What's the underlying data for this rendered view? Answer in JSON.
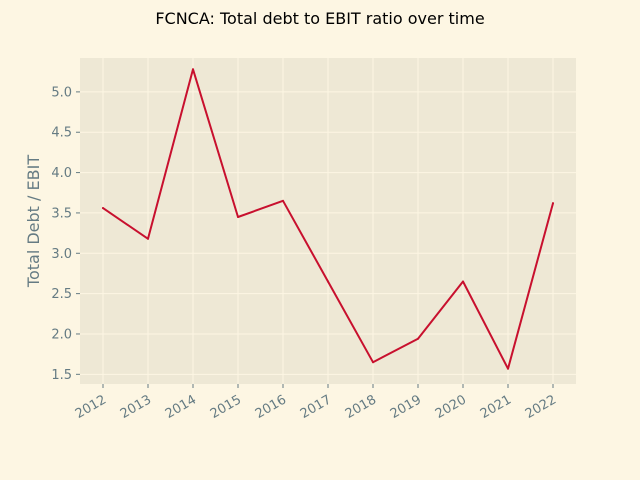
{
  "chart_data": {
    "type": "line",
    "title": "FCNCA: Total debt to EBIT ratio over time",
    "xlabel": "",
    "ylabel": "Total Debt / EBIT",
    "x": [
      "2012",
      "2013",
      "2014",
      "2015",
      "2016",
      "2017",
      "2018",
      "2019",
      "2020",
      "2021",
      "2022"
    ],
    "series": [
      {
        "values": [
          3.56,
          3.18,
          5.28,
          3.45,
          3.65,
          2.65,
          1.65,
          1.94,
          2.65,
          1.57,
          3.62
        ]
      }
    ],
    "yticks": [
      "1.5",
      "2.0",
      "2.5",
      "3.0",
      "3.5",
      "4.0",
      "4.5",
      "5.0"
    ],
    "ylim": [
      1.38,
      5.42
    ],
    "grid": true,
    "colors": {
      "background": "#fdf6e3",
      "plot_background": "#eee8d5",
      "line": "#c8102e",
      "text": "#657b83"
    }
  }
}
